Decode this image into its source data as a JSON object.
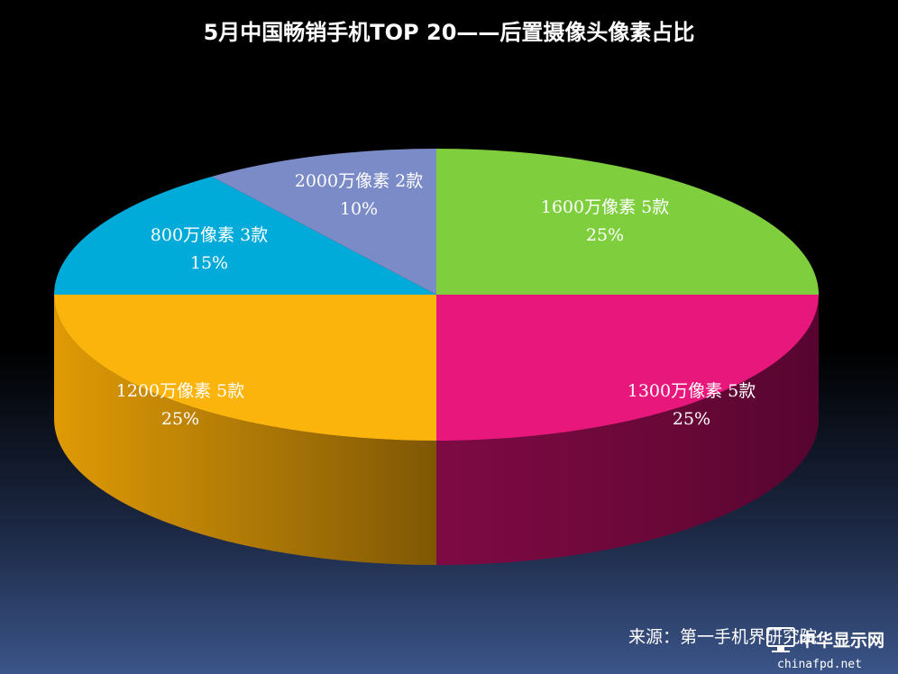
{
  "chart_data": {
    "type": "pie",
    "title": "5月中国畅销手机TOP 20——后置摄像头像素占比",
    "slices": [
      {
        "label": "1600万像素 5款",
        "pct": "25%",
        "value": 25,
        "color": "#7fce3e"
      },
      {
        "label": "1300万像素 5款",
        "pct": "25%",
        "value": 25,
        "color": "#e8177c"
      },
      {
        "label": "1200万像素 5款",
        "pct": "25%",
        "value": 25,
        "color": "#fbb40b"
      },
      {
        "label": "800万像素 3款",
        "pct": "15%",
        "value": 15,
        "color": "#00abd9"
      },
      {
        "label": "2000万像素 2款",
        "pct": "10%",
        "value": 10,
        "color": "#7b8bc7"
      }
    ]
  },
  "source": "来源：第一手机界研究院",
  "watermark": {
    "name": "中华显示网",
    "site": "chinafpd.net",
    "icon": "monitor-icon"
  }
}
